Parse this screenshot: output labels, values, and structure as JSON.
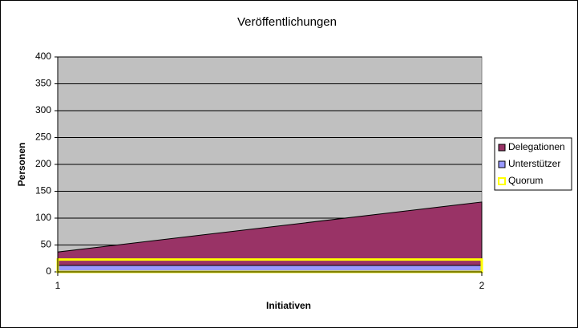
{
  "chart_data": {
    "type": "area",
    "title": "Veröffentlichungen",
    "x_label": "Initiativen",
    "y_label": "Personen",
    "x": [
      1,
      2
    ],
    "xlim": [
      1,
      2
    ],
    "xticks": [
      1,
      2
    ],
    "ylim": [
      0,
      400
    ],
    "yticks": [
      0,
      50,
      100,
      150,
      200,
      250,
      300,
      350,
      400
    ],
    "grid": true,
    "legend": "right",
    "series": [
      {
        "name": "Delegationen",
        "color": "#993366",
        "filled": true,
        "values": [
          37,
          130
        ]
      },
      {
        "name": "Unterstützer",
        "color": "#9999ff",
        "filled": true,
        "values": [
          12,
          12
        ]
      },
      {
        "name": "Quorum",
        "color": "#ffff00",
        "filled": false,
        "values": [
          23,
          23
        ]
      }
    ]
  }
}
